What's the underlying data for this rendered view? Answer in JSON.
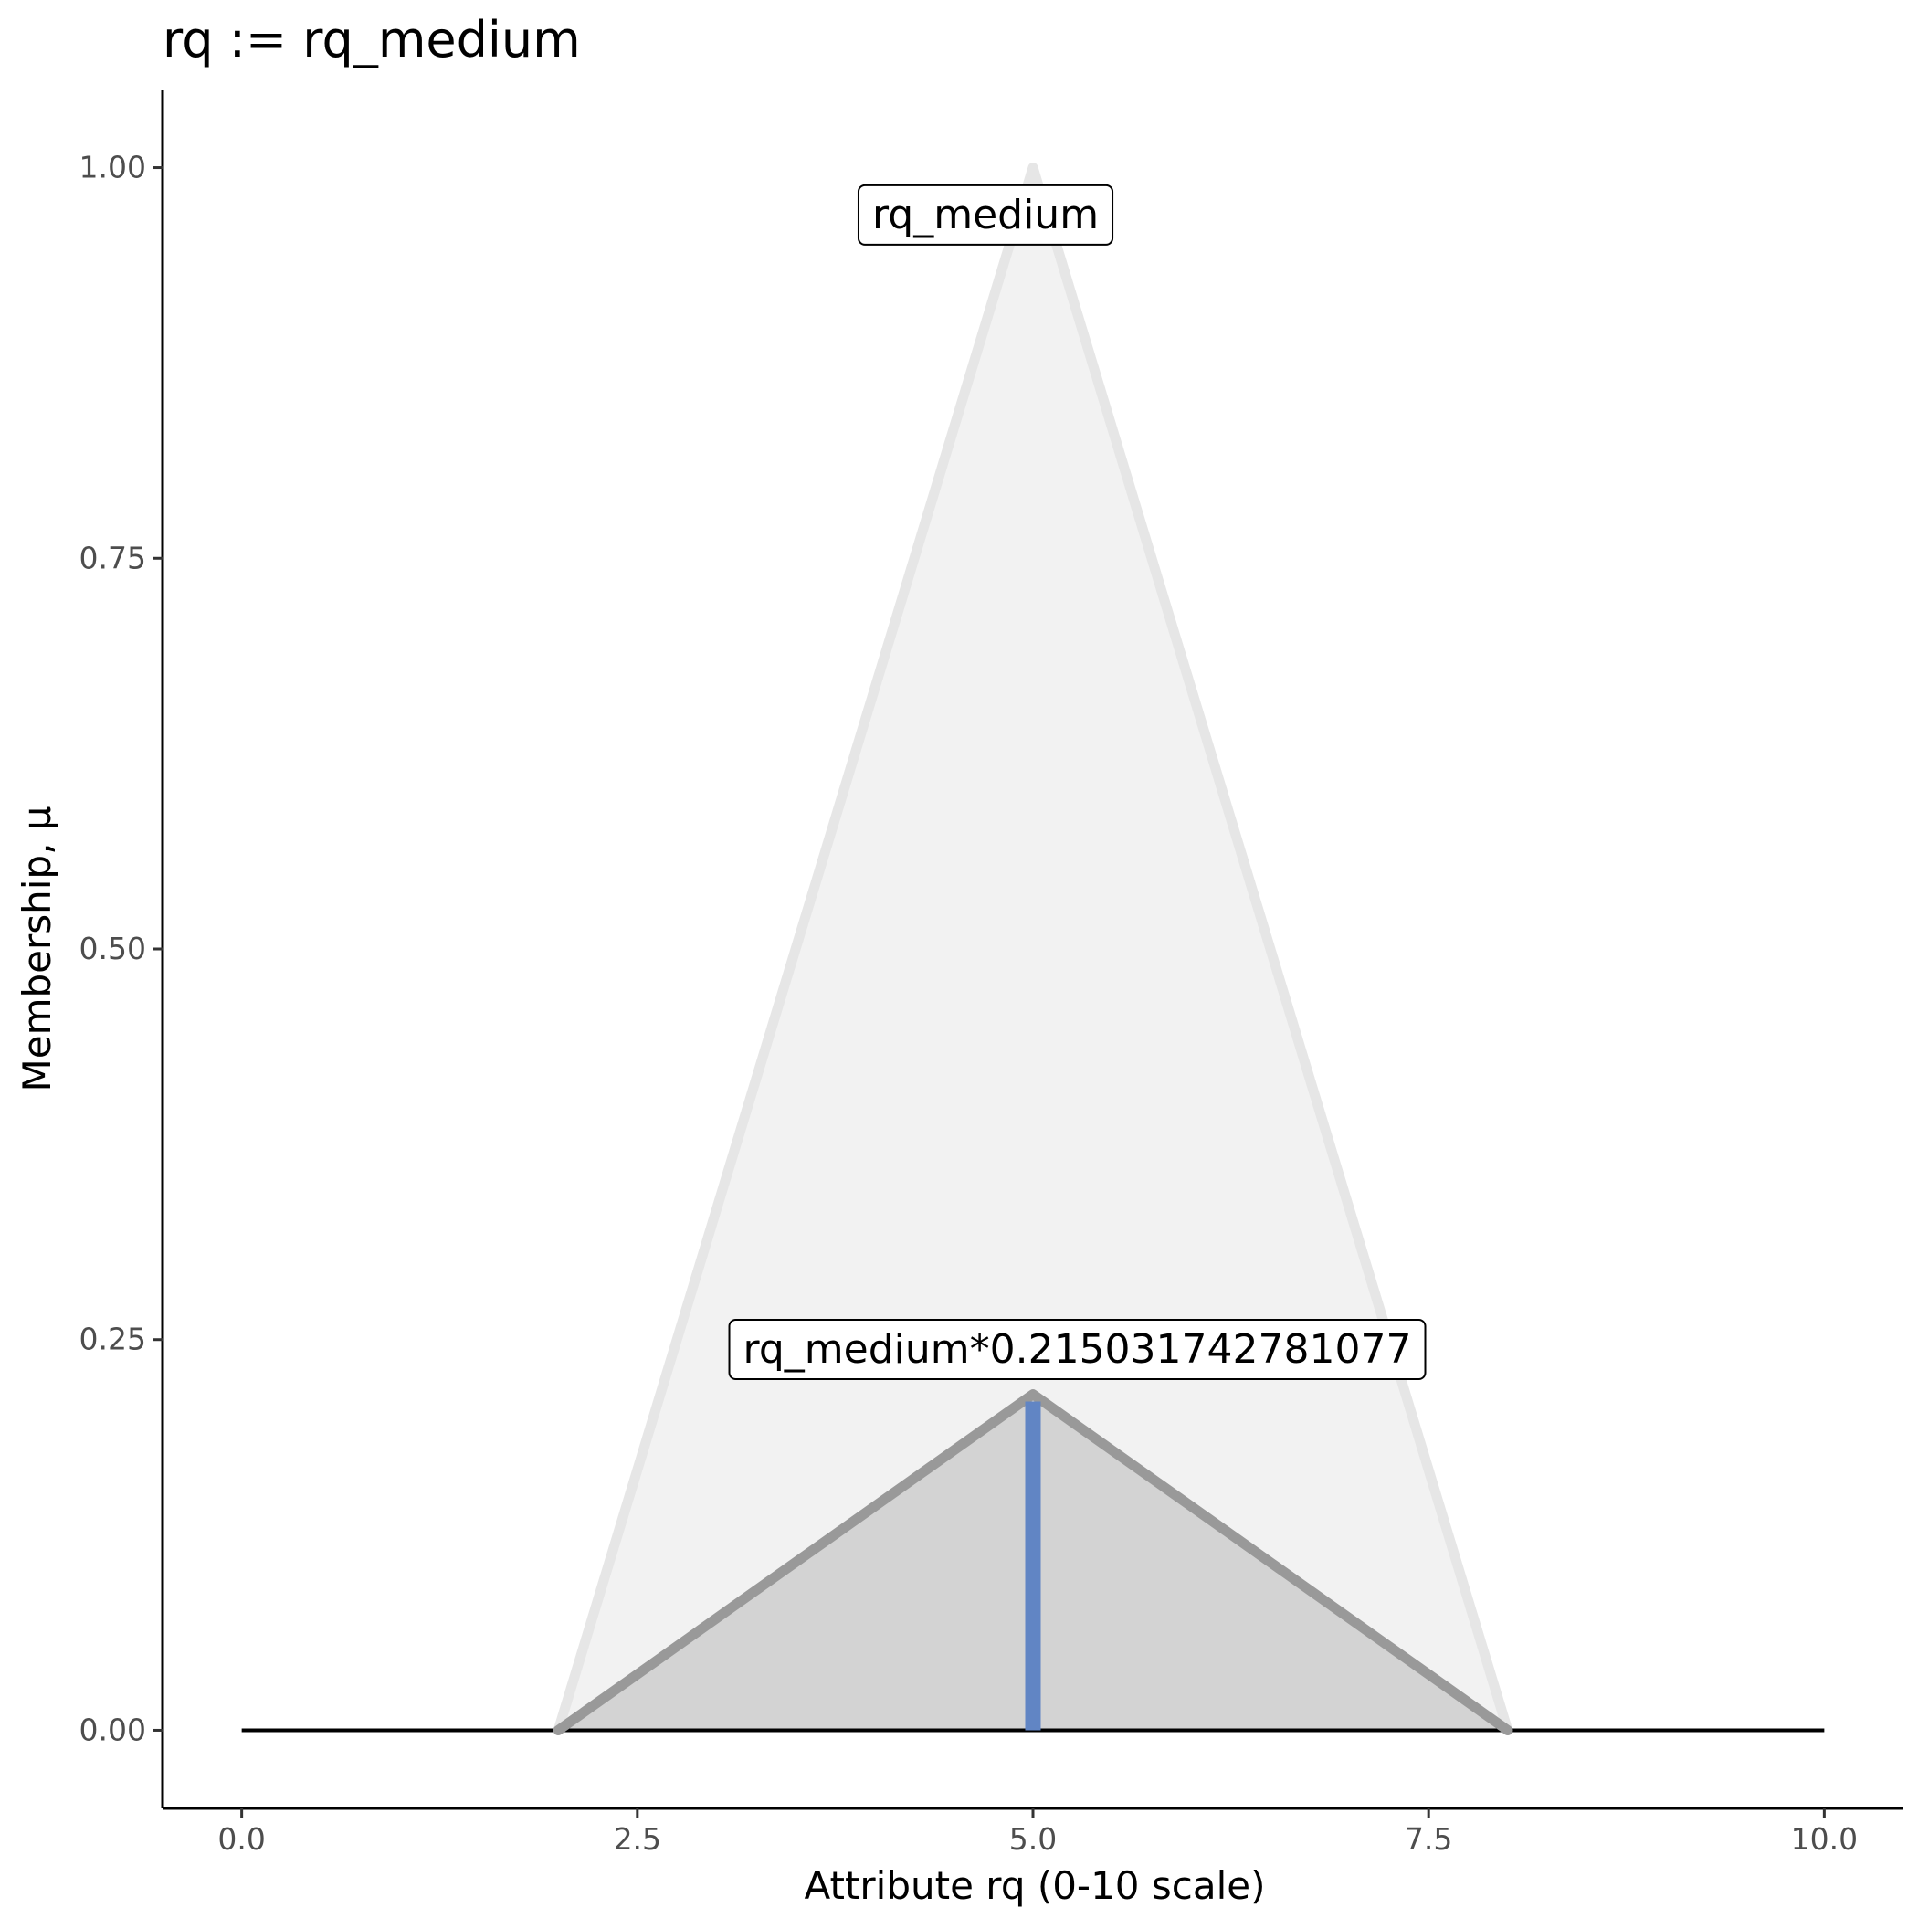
{
  "chart_data": {
    "type": "area",
    "title": "rq := rq_medium",
    "xlabel": "Attribute rq (0-10 scale)",
    "ylabel": "Membership, μ",
    "xlim": [
      -0.5,
      10.5
    ],
    "ylim": [
      -0.05,
      1.05
    ],
    "x_ticks": [
      0,
      2.5,
      5,
      7.5,
      10
    ],
    "x_tick_labels": [
      "0.0",
      "2.5",
      "5.0",
      "7.5",
      "10.0"
    ],
    "y_ticks": [
      0,
      0.25,
      0.5,
      0.75,
      1
    ],
    "y_tick_labels": [
      "0.00",
      "0.25",
      "0.50",
      "0.75",
      "1.00"
    ],
    "grid": false,
    "baseline": {
      "x": [
        0,
        10
      ],
      "y": [
        0,
        0
      ],
      "color": "#000000"
    },
    "series": [
      {
        "name": "rq_medium",
        "x": [
          2,
          5,
          8
        ],
        "y": [
          0,
          1,
          0
        ],
        "fill": "#f2f2f2",
        "stroke": "#e6e6e6"
      },
      {
        "name": "rq_medium*0.215031742781077",
        "x": [
          2,
          5,
          8
        ],
        "y": [
          0,
          0.215031742781077,
          0
        ],
        "fill": "#d3d3d3",
        "stroke": "#999999"
      }
    ],
    "vertical_line": {
      "x": 5,
      "y": [
        0,
        0.215031742781077
      ],
      "color": "#6185c4"
    },
    "annotations": [
      {
        "text": "rq_medium",
        "x": 4.7,
        "y": 0.97
      },
      {
        "text": "rq_medium*0.215031742781077",
        "x": 5.28,
        "y": 0.244
      }
    ]
  }
}
